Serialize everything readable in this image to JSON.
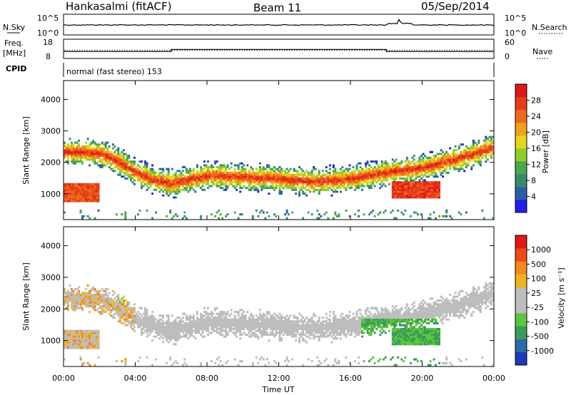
{
  "header": {
    "station": "Hankasalmi (fitACF)",
    "beam": "Beam 11",
    "date": "05/Sep/2014"
  },
  "noise_panel": {
    "left_label": "N.Sky",
    "left_top_tick": "10^5",
    "left_bottom_tick": "10^0",
    "right_label": "N.Search",
    "right_top_tick": "10^5",
    "right_bottom_tick": "10^0"
  },
  "freq_panel": {
    "left_label_1": "Freq.",
    "left_label_2": "[MHz]",
    "left_top_tick": "18",
    "left_bottom_tick": "8",
    "right_label": "Nave",
    "right_top_tick": "60",
    "right_bottom_tick": "0",
    "freq_value_mhz": 12,
    "nave_steps": [
      {
        "from_hour": 0,
        "to_hour": 6,
        "value": 20
      },
      {
        "from_hour": 6,
        "to_hour": 18,
        "value": 27
      },
      {
        "from_hour": 18,
        "to_hour": 24,
        "value": 20
      }
    ]
  },
  "cpid_panel": {
    "label": "CPID",
    "text": "normal (fast stereo) 153"
  },
  "chart_data": [
    {
      "type": "heatmap",
      "name": "power-panel",
      "ylabel": "Slant Range [km]",
      "yticks": [
        "1000",
        "2000",
        "3000",
        "4000"
      ],
      "ylim": [
        180,
        4600
      ],
      "colorbar": {
        "title": "Power [dB]",
        "ticks": [
          "4",
          "8",
          "12",
          "16",
          "20",
          "24",
          "28"
        ],
        "colors": [
          "#1f1fe8",
          "#2a5fa8",
          "#3a8a6a",
          "#49a84a",
          "#8fcf2a",
          "#e6d51e",
          "#f0a21a",
          "#ee6a1a",
          "#e53d1a",
          "#e01818"
        ]
      },
      "echo_band_center_km": [
        {
          "hour": 0.0,
          "km": 2300
        },
        {
          "hour": 1.0,
          "km": 2300
        },
        {
          "hour": 2.0,
          "km": 2250
        },
        {
          "hour": 3.0,
          "km": 2000
        },
        {
          "hour": 4.0,
          "km": 1650
        },
        {
          "hour": 5.0,
          "km": 1400
        },
        {
          "hour": 6.0,
          "km": 1300
        },
        {
          "hour": 8.0,
          "km": 1550
        },
        {
          "hour": 10.0,
          "km": 1500
        },
        {
          "hour": 12.0,
          "km": 1450
        },
        {
          "hour": 14.0,
          "km": 1350
        },
        {
          "hour": 16.0,
          "km": 1450
        },
        {
          "hour": 18.0,
          "km": 1650
        },
        {
          "hour": 20.0,
          "km": 1800
        },
        {
          "hour": 22.0,
          "km": 2100
        },
        {
          "hour": 24.0,
          "km": 2450
        }
      ]
    },
    {
      "type": "heatmap",
      "name": "velocity-panel",
      "ylabel": "Slant Range [km]",
      "yticks": [
        "1000",
        "2000",
        "3000",
        "4000"
      ],
      "ylim": [
        180,
        4600
      ],
      "xlabel": "Time UT",
      "xticks": [
        "00:00",
        "04:00",
        "08:00",
        "12:00",
        "16:00",
        "20:00",
        "00:00"
      ],
      "colorbar": {
        "title": "Velocity [m s⁻¹]",
        "ticks": [
          "1000",
          "500",
          "100",
          "25",
          "-25",
          "-100",
          "-500",
          "-1000"
        ],
        "colors": [
          "#1f3ab8",
          "#2b6aa8",
          "#3b9a5a",
          "#5cc63a",
          "#bdbdbd",
          "#bdbdbd",
          "#f0b41a",
          "#f08a1a",
          "#f04a1a",
          "#e01818"
        ]
      }
    }
  ]
}
